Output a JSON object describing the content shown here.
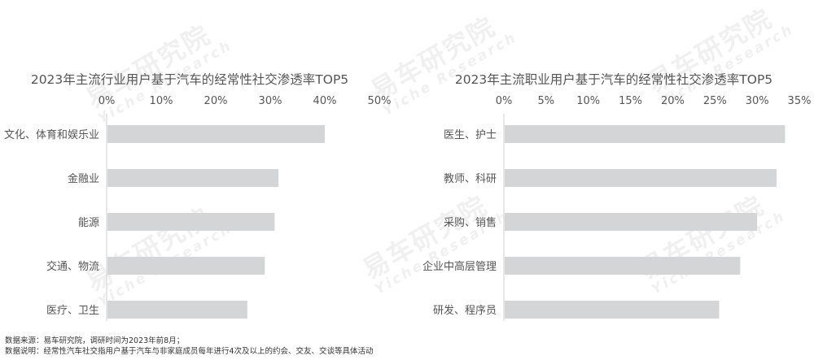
{
  "chart_data": [
    {
      "type": "bar",
      "orientation": "horizontal",
      "title": "2023年主流行业用户基于汽车的经常性社交渗透率TOP5",
      "categories": [
        "文化、体育和娱乐业",
        "金融业",
        "能源",
        "交通、物流",
        "医疗、卫生"
      ],
      "values": [
        40,
        31.5,
        30.8,
        29,
        25.8
      ],
      "xlim": [
        0,
        50
      ],
      "ticks": [
        "0%",
        "10%",
        "20%",
        "30%",
        "40%",
        "50%"
      ],
      "tick_values": [
        0,
        10,
        20,
        30,
        40,
        50
      ],
      "color": "#d4d5d7"
    },
    {
      "type": "bar",
      "orientation": "horizontal",
      "title": "2023年主流职业用户基于汽车的经常性社交渗透率TOP5",
      "categories": [
        "医生、护士",
        "教师、科研",
        "采购、销售",
        "企业中高层管理",
        "研发、程序员"
      ],
      "values": [
        33.3,
        32.3,
        30,
        28,
        25.5
      ],
      "xlim": [
        0,
        35
      ],
      "ticks": [
        "0%",
        "5%",
        "10%",
        "15%",
        "20%",
        "25%",
        "30%",
        "35%"
      ],
      "tick_values": [
        0,
        5,
        10,
        15,
        20,
        25,
        30,
        35
      ],
      "color": "#d4d5d7"
    }
  ],
  "watermark": {
    "cn": "易车研究院",
    "en": "Yiche Research"
  },
  "notes": {
    "source": "数据来源：易车研究院，调研时间为2023年前8月；",
    "explanation": "数据说明：经常性汽车社交指用户基于汽车与非家庭成员每年进行4次及以上的约会、交友、交谈等具体活动"
  }
}
